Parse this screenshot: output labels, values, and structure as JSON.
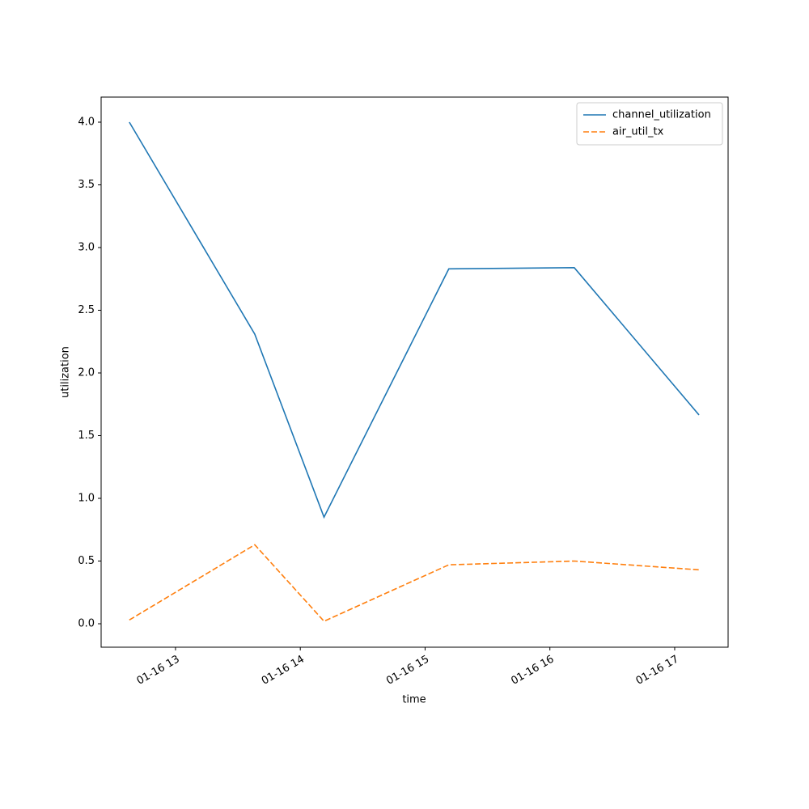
{
  "chart_data": {
    "type": "line",
    "x_label": "time",
    "y_label": "utilization",
    "x": [
      12.63,
      13.635,
      14.19,
      15.19,
      16.195,
      17.195
    ],
    "series": [
      {
        "name": "channel_utilization",
        "color": "#1f77b4",
        "linestyle": "solid",
        "values": [
          4.0,
          2.31,
          0.85,
          2.83,
          2.84,
          1.665
        ]
      },
      {
        "name": "air_util_tx",
        "color": "#ff7f0e",
        "linestyle": "dashed",
        "values": [
          0.03,
          0.63,
          0.02,
          0.47,
          0.5,
          0.43
        ]
      }
    ],
    "xlim": [
      12.404,
      17.428
    ],
    "xticks": [
      {
        "value": 13,
        "label": "01-16 13"
      },
      {
        "value": 14,
        "label": "01-16 14"
      },
      {
        "value": 15,
        "label": "01-16 15"
      },
      {
        "value": 16,
        "label": "01-16 16"
      },
      {
        "value": 17,
        "label": "01-16 17"
      }
    ],
    "ylim": [
      -0.187,
      4.2
    ],
    "yticks": [
      {
        "value": 0,
        "label": "0.0"
      },
      {
        "value": 0.5,
        "label": "0.5"
      },
      {
        "value": 1,
        "label": "1.0"
      },
      {
        "value": 1.5,
        "label": "1.5"
      },
      {
        "value": 2,
        "label": "2.0"
      },
      {
        "value": 2.5,
        "label": "2.5"
      },
      {
        "value": 3,
        "label": "3.0"
      },
      {
        "value": 3.5,
        "label": "3.5"
      },
      {
        "value": 4,
        "label": "4.0"
      }
    ],
    "legend": "upper right"
  }
}
